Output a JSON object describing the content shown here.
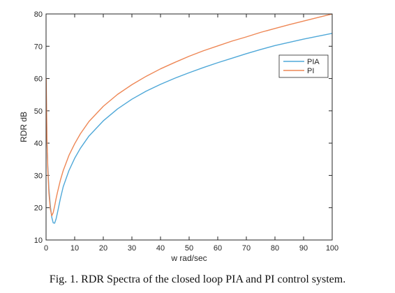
{
  "caption": "Fig. 1. RDR Spectra of the closed loop PIA and PI control system.",
  "chart_data": {
    "type": "line",
    "xlabel": "w rad/sec",
    "ylabel": "RDR dB",
    "xlim": [
      0,
      100
    ],
    "ylim": [
      10,
      80
    ],
    "xticks": [
      0,
      10,
      20,
      30,
      40,
      50,
      60,
      70,
      80,
      90,
      100
    ],
    "yticks": [
      10,
      20,
      30,
      40,
      50,
      60,
      70,
      80
    ],
    "grid": false,
    "legend_position": "top-right",
    "series": [
      {
        "name": "PIA",
        "color": "#4fa8d8",
        "x": [
          0.05,
          0.3,
          0.6,
          1,
          1.5,
          2,
          2.5,
          3,
          3.5,
          4,
          5,
          6,
          8,
          10,
          12,
          15,
          20,
          25,
          30,
          35,
          40,
          45,
          50,
          55,
          60,
          65,
          70,
          75,
          80,
          85,
          90,
          95,
          100
        ],
        "values": [
          56,
          41,
          33,
          26,
          20.5,
          17,
          15.3,
          15.2,
          16.5,
          18.5,
          22.8,
          26.5,
          31.5,
          35.3,
          38.4,
          42.2,
          46.9,
          50.6,
          53.6,
          56.1,
          58.2,
          60.1,
          61.8,
          63.4,
          64.9,
          66.3,
          67.7,
          69,
          70.2,
          71.2,
          72.2,
          73.1,
          74
        ]
      },
      {
        "name": "PI",
        "color": "#ee8755",
        "x": [
          0.05,
          0.3,
          0.6,
          1,
          1.5,
          2,
          2.5,
          3,
          3.5,
          4,
          5,
          6,
          8,
          10,
          12,
          15,
          20,
          25,
          30,
          35,
          40,
          45,
          50,
          55,
          60,
          65,
          70,
          75,
          80,
          85,
          90,
          95,
          100
        ],
        "values": [
          60,
          42,
          32,
          24.5,
          19.5,
          17.5,
          18.5,
          20.5,
          22.8,
          24.8,
          28.5,
          31.5,
          36.2,
          39.8,
          42.9,
          46.7,
          51.4,
          55.1,
          58.1,
          60.7,
          63,
          65,
          66.9,
          68.6,
          70.1,
          71.6,
          72.9,
          74.3,
          75.5,
          76.7,
          77.8,
          78.9,
          80
        ]
      }
    ]
  }
}
